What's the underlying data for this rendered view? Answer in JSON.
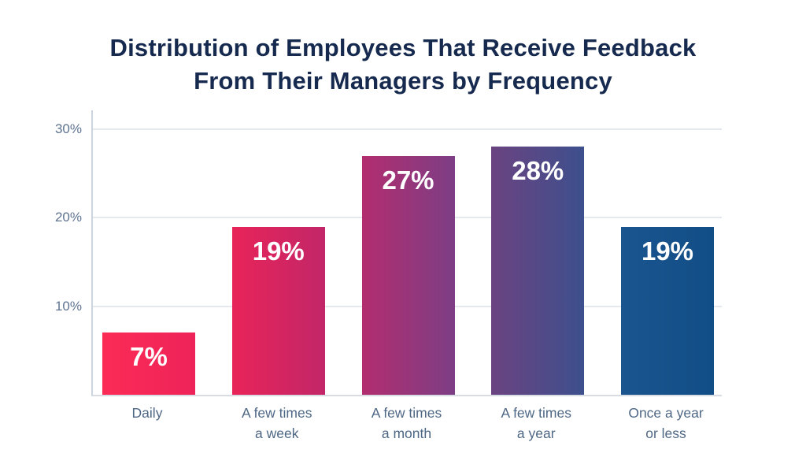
{
  "chart_data": {
    "type": "bar",
    "title": "Distribution of Employees That Receive Feedback From Their Managers by Frequency",
    "title_lines": [
      "Distribution of Employees That Receive Feedback",
      "From Their Managers by Frequency"
    ],
    "categories": [
      "Daily",
      "A few times a week",
      "A few times a month",
      "A few times a year",
      "Once a year or less"
    ],
    "category_display": [
      "Daily",
      "A few times\na week",
      "A few times\na month",
      "A few times\na year",
      "Once a year\nor less"
    ],
    "values": [
      7,
      19,
      27,
      28,
      19
    ],
    "value_labels": [
      "7%",
      "19%",
      "27%",
      "28%",
      "19%"
    ],
    "xlabel": "",
    "ylabel": "",
    "ylim": [
      0,
      30
    ],
    "yticks": [
      {
        "value": 10,
        "label": "10%"
      },
      {
        "value": 20,
        "label": "20%"
      },
      {
        "value": 30,
        "label": "30%"
      }
    ],
    "grid": true,
    "legend": false,
    "bar_gradients": [
      {
        "from": "#FC2B56",
        "to": "#EE2359"
      },
      {
        "from": "#E82459",
        "to": "#C22668"
      },
      {
        "from": "#B22D6F",
        "to": "#7D3E85"
      },
      {
        "from": "#6B4381",
        "to": "#3D508D"
      },
      {
        "from": "#1B558F",
        "to": "#114D86"
      }
    ],
    "colors": {
      "background": "#FFFFFF",
      "title": "#16294E",
      "tick_text": "#5E7390",
      "category_text": "#4E6784",
      "value_text": "#FFFFFF",
      "gridline": "#E5E8ED",
      "axis_line": "#CBD4DF",
      "baseline": "#D8DDE3"
    }
  }
}
